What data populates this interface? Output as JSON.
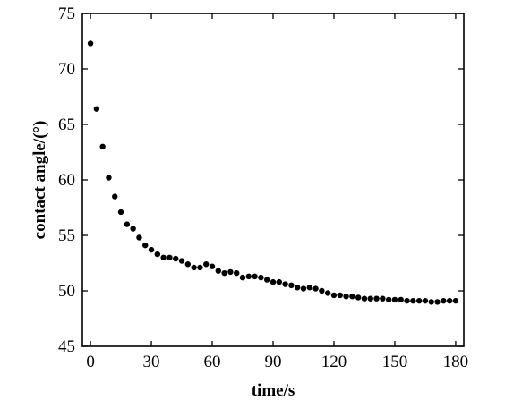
{
  "chart_data": {
    "type": "scatter",
    "title": "",
    "xlabel": "time/s",
    "ylabel": "contact angle/(°)",
    "xlim": [
      -4,
      184
    ],
    "ylim": [
      45,
      75
    ],
    "xticks": [
      0,
      30,
      60,
      90,
      120,
      150,
      180
    ],
    "yticks": [
      45,
      50,
      55,
      60,
      65,
      70,
      75
    ],
    "grid": false,
    "legend": "none",
    "marker_color": "#000000",
    "series": [
      {
        "x": [
          0,
          3,
          6,
          9,
          12,
          15,
          18,
          21,
          24,
          27,
          30,
          33,
          36,
          39,
          42,
          45,
          48,
          51,
          54,
          57,
          60,
          63,
          66,
          69,
          72,
          75,
          78,
          81,
          84,
          87,
          90,
          93,
          96,
          99,
          102,
          105,
          108,
          111,
          114,
          117,
          120,
          123,
          126,
          129,
          132,
          135,
          138,
          141,
          144,
          147,
          150,
          153,
          156,
          159,
          162,
          165,
          168,
          171,
          174,
          177,
          180
        ],
        "y": [
          72.3,
          66.4,
          63.0,
          60.2,
          58.5,
          57.1,
          56.0,
          55.6,
          54.8,
          54.1,
          53.7,
          53.3,
          53.0,
          53.0,
          52.9,
          52.7,
          52.4,
          52.1,
          52.1,
          52.4,
          52.2,
          51.8,
          51.6,
          51.7,
          51.6,
          51.2,
          51.3,
          51.3,
          51.2,
          51.0,
          50.8,
          50.8,
          50.6,
          50.5,
          50.3,
          50.2,
          50.3,
          50.2,
          50.0,
          49.8,
          49.6,
          49.6,
          49.5,
          49.5,
          49.4,
          49.3,
          49.3,
          49.3,
          49.3,
          49.2,
          49.2,
          49.2,
          49.1,
          49.1,
          49.1,
          49.1,
          49.0,
          49.0,
          49.1,
          49.1,
          49.1
        ]
      }
    ]
  }
}
